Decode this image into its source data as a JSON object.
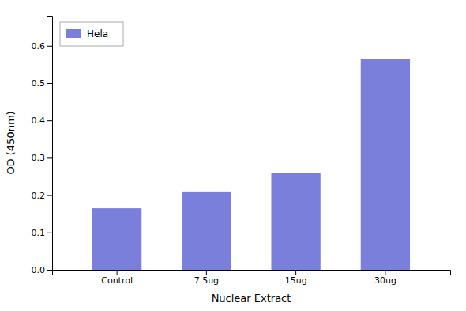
{
  "chart_data": {
    "type": "bar",
    "categories": [
      "Control",
      "7.5ug",
      "15ug",
      "30ug"
    ],
    "series": [
      {
        "name": "Hela",
        "color": "#7b7fdc",
        "values": [
          0.165,
          0.21,
          0.26,
          0.565
        ]
      }
    ],
    "xlabel": "Nuclear Extract",
    "ylabel": "OD (450nm)",
    "ylim": [
      0,
      0.68
    ],
    "yticks": [
      {
        "value": 0,
        "label": "0.0"
      },
      0.1,
      0.2,
      0.3,
      0.4,
      0.5,
      0.6
    ],
    "legend": "upper left",
    "grid": false
  }
}
